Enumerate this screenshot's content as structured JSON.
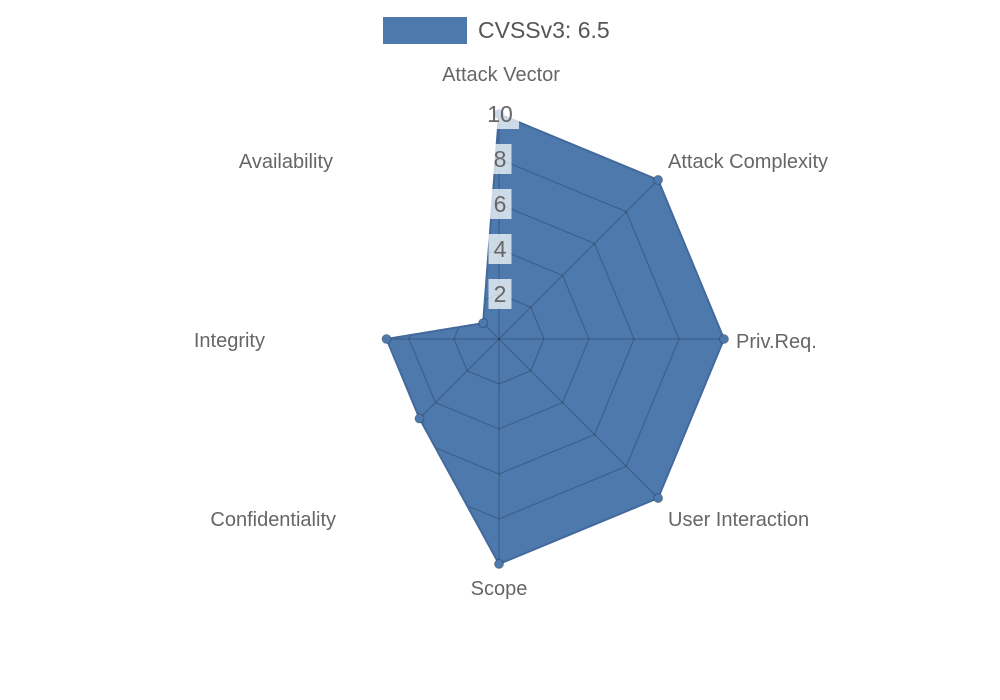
{
  "chart_data": {
    "type": "radar",
    "legend": {
      "position": "top",
      "label": "CVSSv3: 6.5"
    },
    "categories": [
      "Attack Vector",
      "Attack Complexity",
      "Priv.Req.",
      "User Interaction",
      "Scope",
      "Confidentiality",
      "Integrity",
      "Availability"
    ],
    "series": [
      {
        "name": "CVSSv3: 6.5",
        "values": [
          10,
          10,
          10,
          10,
          10,
          5,
          5,
          1
        ]
      }
    ],
    "scale": {
      "min": 0,
      "max": 10,
      "ticks": [
        2,
        4,
        6,
        8,
        10
      ]
    },
    "grid": true,
    "colors": {
      "fill": "#4d79ac",
      "outline": "#44699c",
      "point": "#4d79ac",
      "point_outline": "rgba(0,0,0,0.25)",
      "grid_line": "rgba(0,0,0,0.2)",
      "tick_text": "#666666",
      "tick_backdrop": "rgba(255,255,255,0.72)",
      "label_text": "#666666",
      "legend_text": "#565656"
    }
  }
}
